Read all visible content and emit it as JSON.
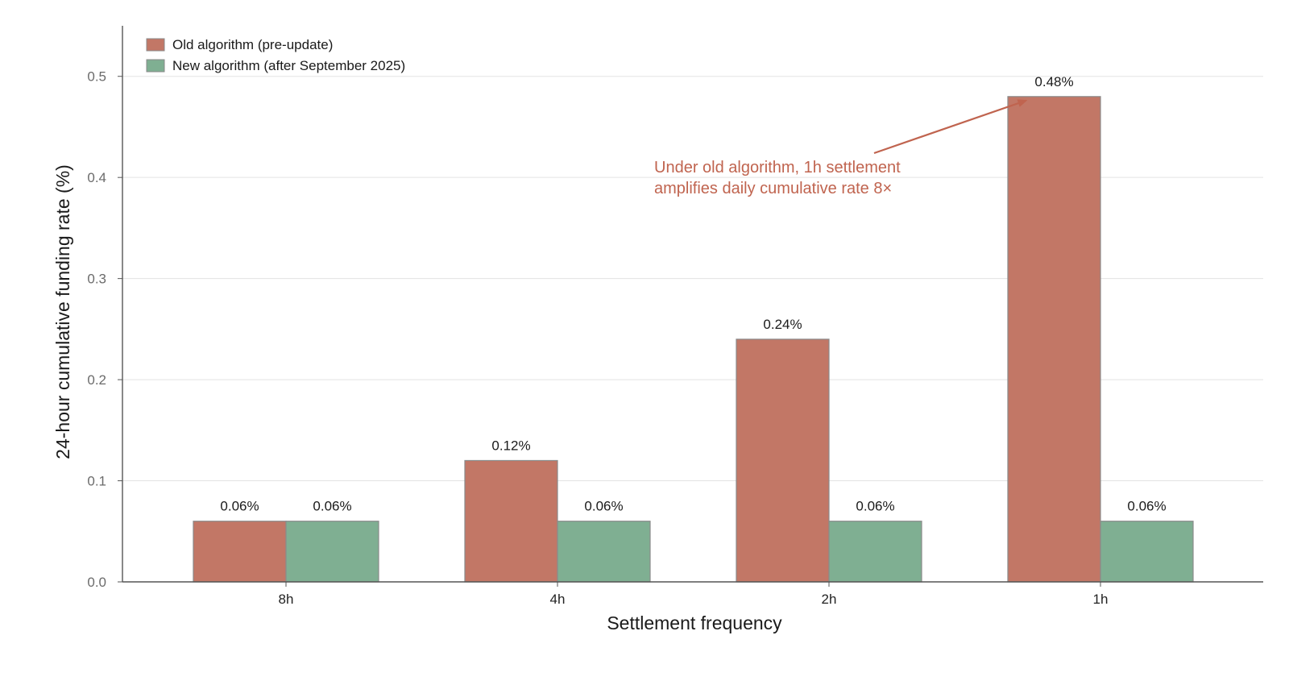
{
  "chart_data": {
    "type": "bar",
    "title": "",
    "xlabel": "Settlement frequency",
    "ylabel": "24-hour cumulative funding rate (%)",
    "categories": [
      "8h",
      "4h",
      "2h",
      "1h"
    ],
    "series": [
      {
        "name": "Old algorithm (pre-update)",
        "color": "#c27766",
        "values": [
          0.06,
          0.12,
          0.24,
          0.48
        ],
        "value_labels": [
          "0.06%",
          "0.12%",
          "0.24%",
          "0.48%"
        ]
      },
      {
        "name": "New algorithm (after September 2025)",
        "color": "#7faf92",
        "values": [
          0.06,
          0.06,
          0.06,
          0.06
        ],
        "value_labels": [
          "0.06%",
          "0.06%",
          "0.06%",
          "0.06%"
        ]
      }
    ],
    "ylim": [
      0,
      0.55
    ],
    "yticks": [
      0.0,
      0.1,
      0.2,
      0.3,
      0.4,
      0.5
    ],
    "ytick_labels": [
      "0.0",
      "0.1",
      "0.2",
      "0.3",
      "0.4",
      "0.5"
    ],
    "grid": "horizontal",
    "legend_position": "top-left",
    "annotation": {
      "lines": [
        "Under old algorithm, 1h settlement",
        "amplifies daily cumulative rate 8×"
      ],
      "color": "#c0644f",
      "target_category": "1h",
      "target_series": 0
    }
  }
}
